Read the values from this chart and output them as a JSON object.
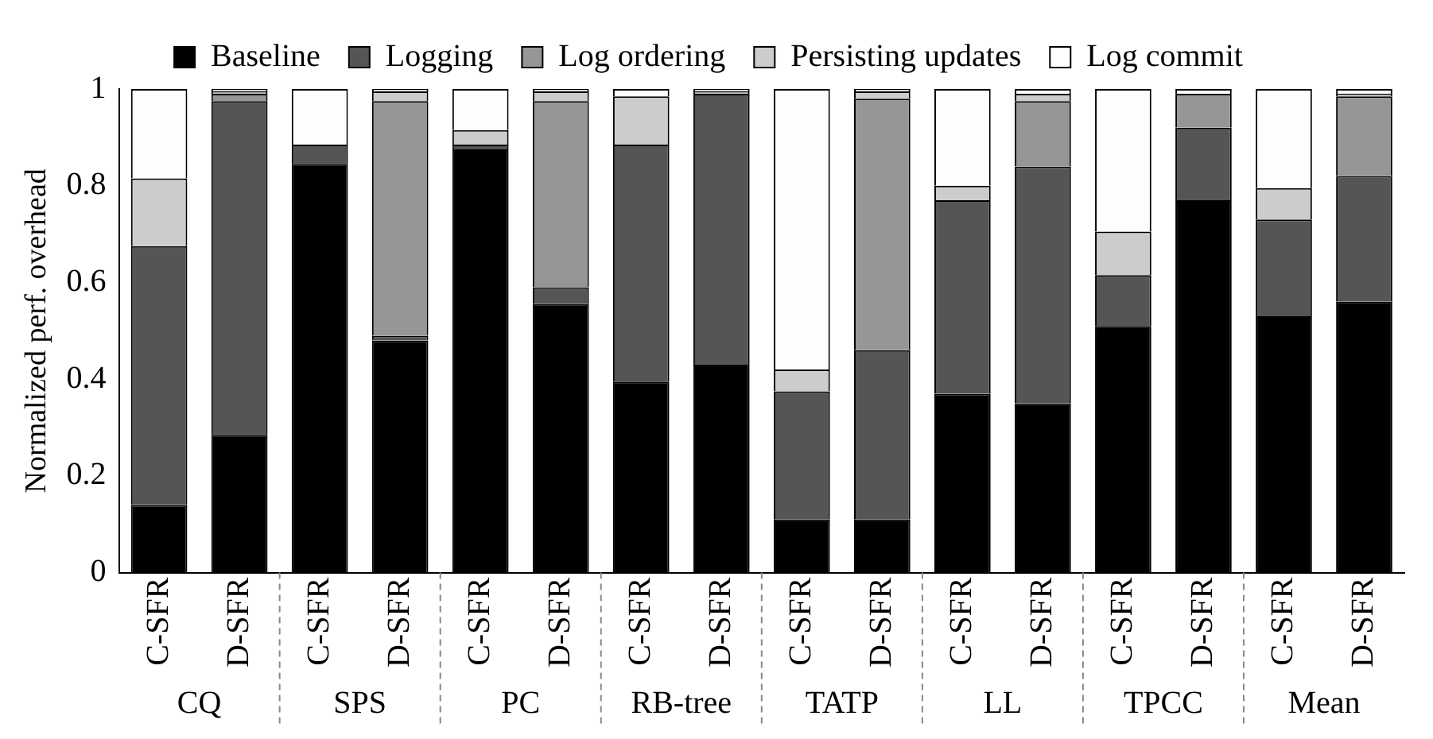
{
  "chart_data": {
    "type": "bar",
    "stacked": true,
    "ylabel": "Normalized perf. overhead",
    "ylim": [
      0,
      1
    ],
    "yticks": [
      0,
      0.2,
      0.4,
      0.6,
      0.8,
      1
    ],
    "grid": false,
    "legend": "top",
    "categories": [
      "C-SFR",
      "D-SFR",
      "C-SFR",
      "D-SFR",
      "C-SFR",
      "D-SFR",
      "C-SFR",
      "D-SFR",
      "C-SFR",
      "D-SFR",
      "C-SFR",
      "D-SFR",
      "C-SFR",
      "D-SFR",
      "C-SFR",
      "D-SFR"
    ],
    "annotations": [
      "CQ",
      "SPS",
      "PC",
      "RB-tree",
      "TATP",
      "LL",
      "TPCC",
      "Mean"
    ],
    "series": [
      {
        "name": "Baseline",
        "color": "#000000",
        "values": [
          0.14,
          0.285,
          0.845,
          0.48,
          0.875,
          0.555,
          0.395,
          0.43,
          0.11,
          0.11,
          0.37,
          0.35,
          0.51,
          0.77,
          0.53,
          0.56
        ]
      },
      {
        "name": "Logging",
        "color": "#555555",
        "values": [
          0.535,
          0.69,
          0.04,
          0.01,
          0.01,
          0.035,
          0.49,
          0.56,
          0.265,
          0.35,
          0.4,
          0.49,
          0.105,
          0.15,
          0.2,
          0.26
        ]
      },
      {
        "name": "Log ordering",
        "color": "#969696",
        "values": [
          0,
          0.015,
          0,
          0.485,
          0,
          0.385,
          0,
          0,
          0,
          0.52,
          0,
          0.135,
          0,
          0.07,
          0,
          0.165
        ]
      },
      {
        "name": "Persisting updates",
        "color": "#cccccc",
        "values": [
          0.14,
          0.005,
          0,
          0.02,
          0.03,
          0.02,
          0.1,
          0.005,
          0.045,
          0.015,
          0.03,
          0.015,
          0.09,
          0,
          0.065,
          0.005
        ]
      },
      {
        "name": "Log commit",
        "color": "#fdfdfd",
        "values": [
          0.185,
          0.005,
          0.115,
          0.005,
          0.085,
          0.005,
          0.015,
          0.005,
          0.58,
          0.005,
          0.2,
          0.01,
          0.295,
          0.01,
          0.205,
          0.01
        ]
      }
    ]
  }
}
